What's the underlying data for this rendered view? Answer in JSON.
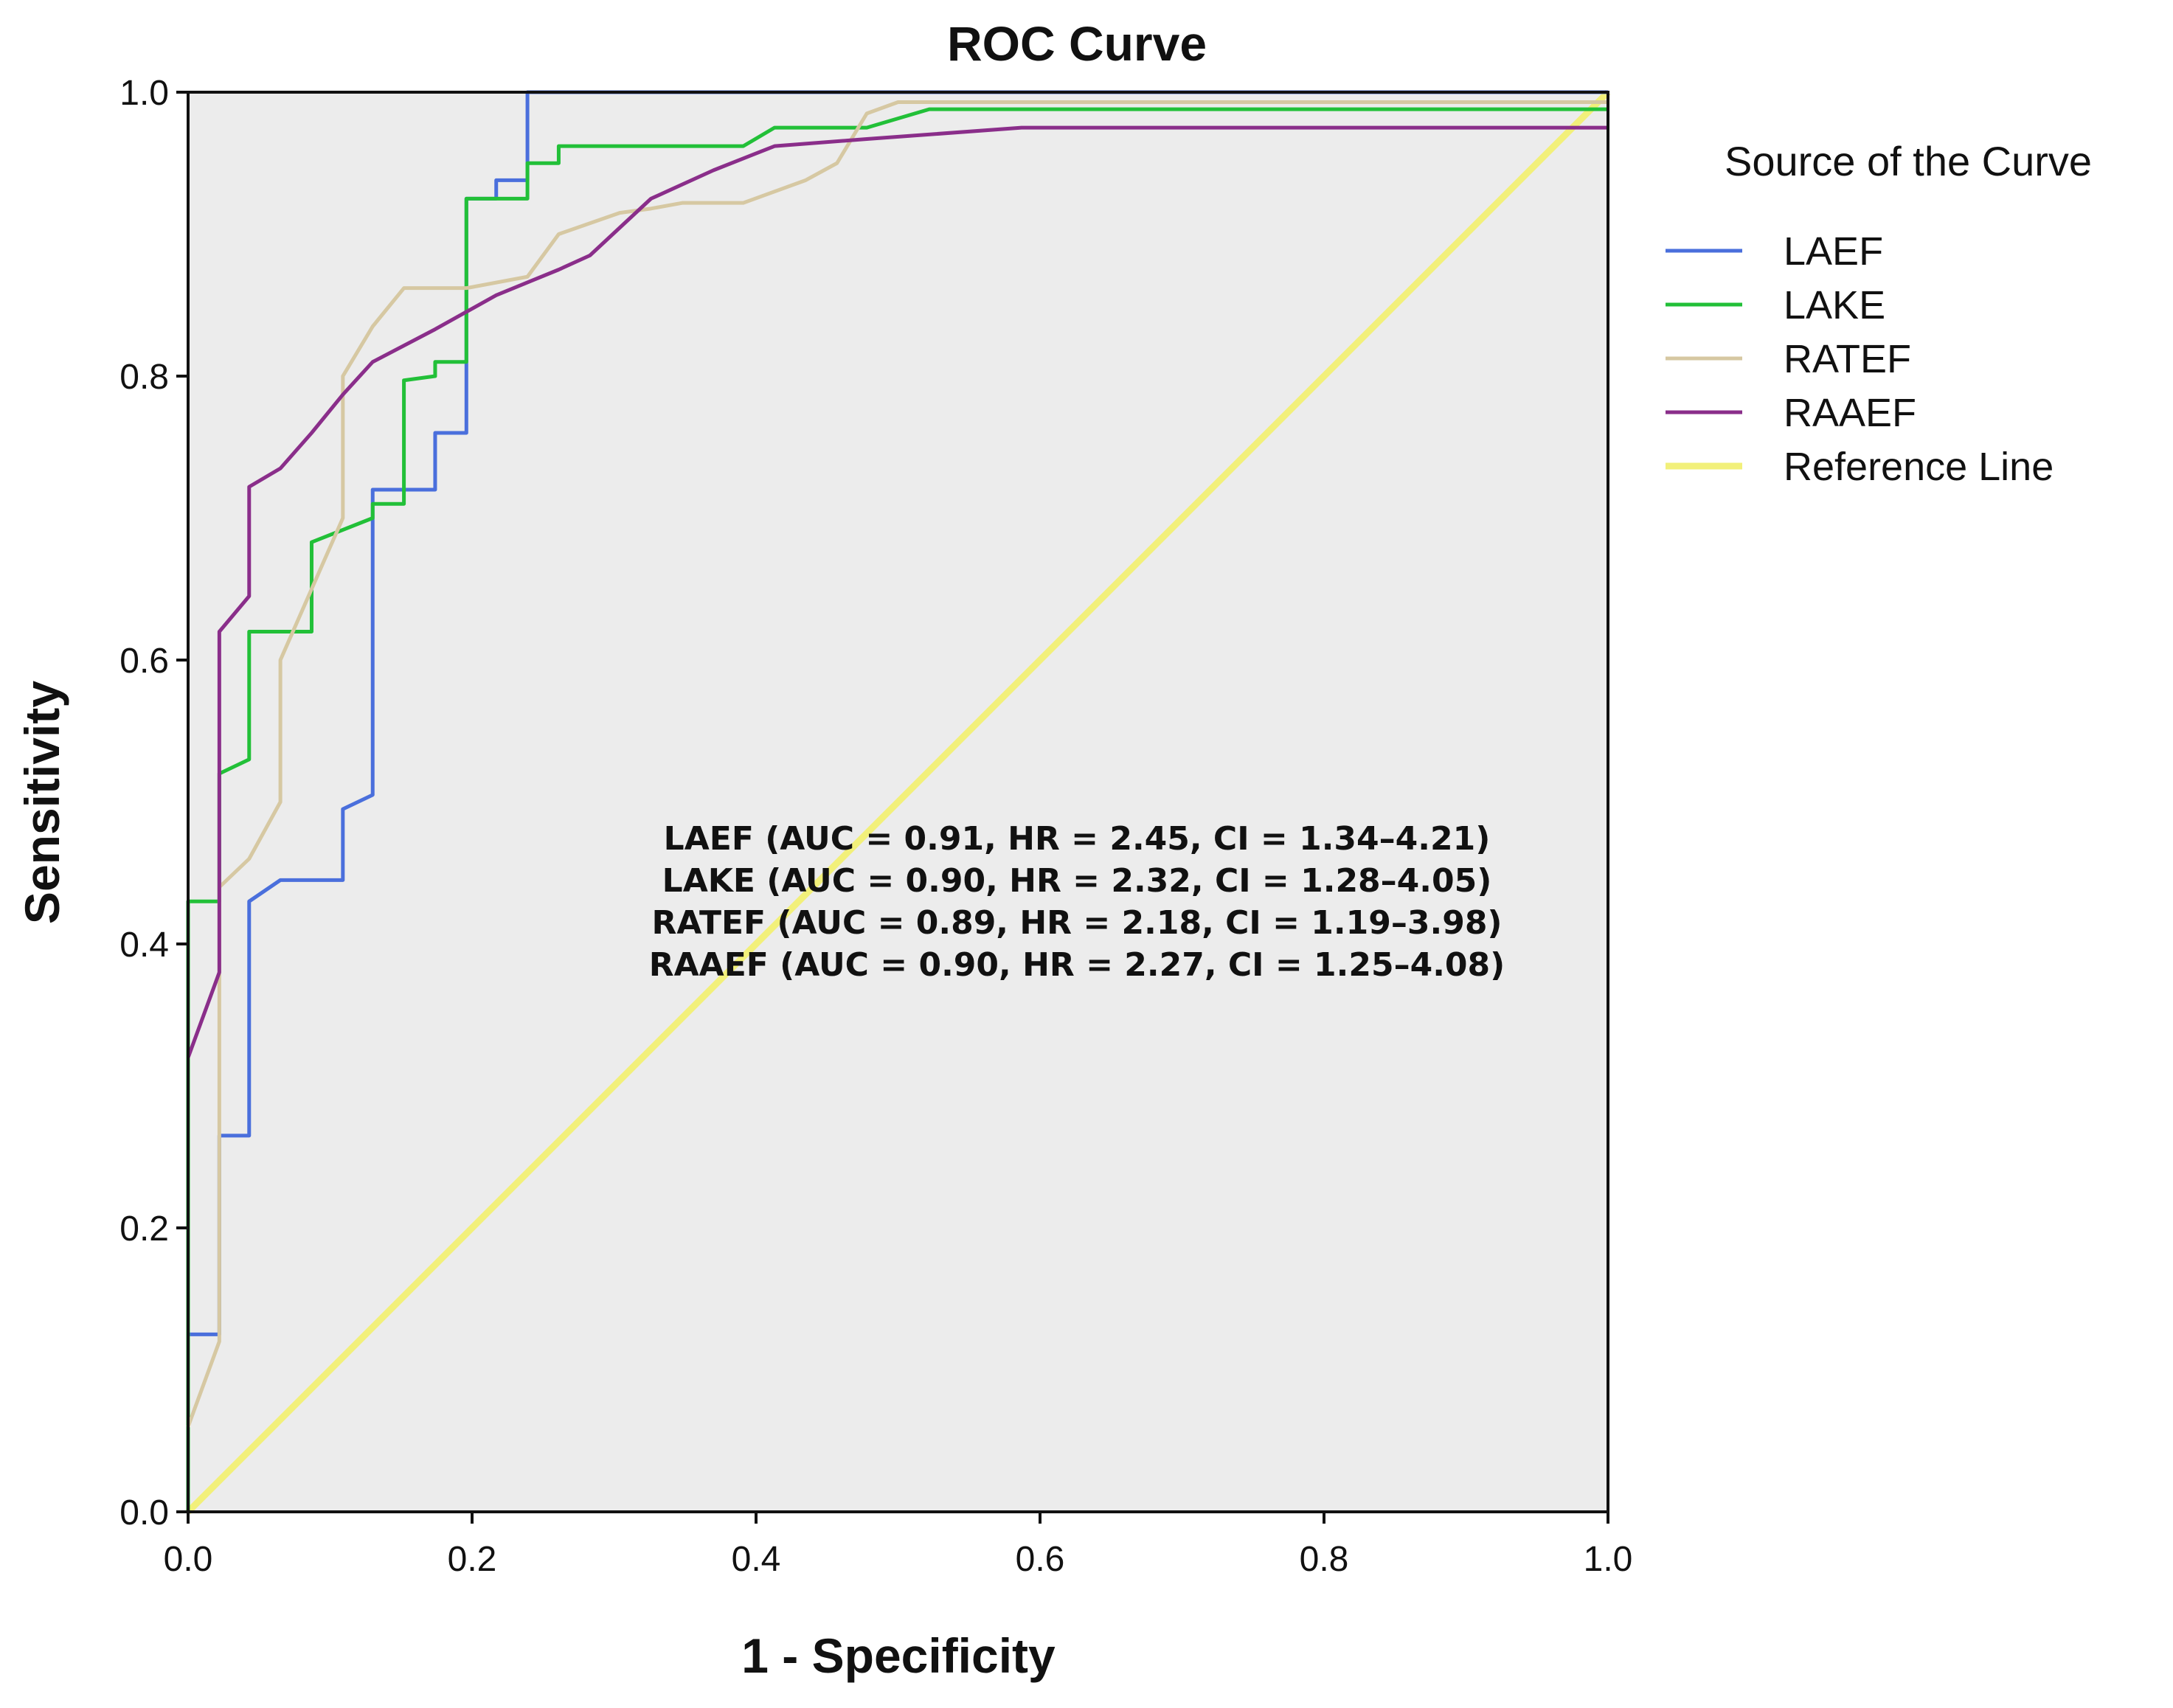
{
  "chart_data": {
    "type": "line",
    "title": "ROC Curve",
    "xlabel": "1 - Specificity",
    "ylabel": "Sensitivity",
    "xlim": [
      0,
      1
    ],
    "ylim": [
      0,
      1
    ],
    "xticks": [
      "0.0",
      "0.2",
      "0.4",
      "0.6",
      "0.8",
      "1.0"
    ],
    "yticks": [
      "0.0",
      "0.2",
      "0.4",
      "0.6",
      "0.8",
      "1.0"
    ],
    "grid": false,
    "background": "#ececec",
    "legend": {
      "title": "Source of the Curve",
      "position": "right",
      "entries": [
        "LAEF",
        "LAKE",
        "RATEF",
        "RAAEF",
        "Reference Line"
      ]
    },
    "series": [
      {
        "name": "LAEF",
        "color": "#4a6fdc",
        "x": [
          0,
          0,
          0.022,
          0.022,
          0.043,
          0.043,
          0.065,
          0.109,
          0.109,
          0.13,
          0.13,
          0.152,
          0.174,
          0.174,
          0.196,
          0.196,
          0.217,
          0.217,
          0.239,
          0.239,
          1
        ],
        "y": [
          0,
          0.125,
          0.125,
          0.265,
          0.265,
          0.43,
          0.445,
          0.445,
          0.495,
          0.505,
          0.72,
          0.72,
          0.72,
          0.76,
          0.76,
          0.925,
          0.925,
          0.938,
          0.938,
          1,
          1
        ]
      },
      {
        "name": "LAKE",
        "color": "#22c038",
        "x": [
          0,
          0,
          0.022,
          0.022,
          0.043,
          0.043,
          0.087,
          0.087,
          0.13,
          0.13,
          0.152,
          0.152,
          0.174,
          0.174,
          0.196,
          0.196,
          0.239,
          0.239,
          0.261,
          0.261,
          0.391,
          0.413,
          0.478,
          0.522,
          1
        ],
        "y": [
          0,
          0.43,
          0.43,
          0.52,
          0.53,
          0.62,
          0.62,
          0.683,
          0.7,
          0.71,
          0.71,
          0.797,
          0.8,
          0.81,
          0.81,
          0.925,
          0.925,
          0.95,
          0.95,
          0.962,
          0.962,
          0.975,
          0.975,
          0.988,
          0.988
        ]
      },
      {
        "name": "RATEF",
        "color": "#d6c8a2",
        "x": [
          0,
          0.022,
          0.022,
          0.043,
          0.065,
          0.065,
          0.109,
          0.109,
          0.13,
          0.152,
          0.196,
          0.239,
          0.261,
          0.304,
          0.326,
          0.348,
          0.391,
          0.435,
          0.457,
          0.478,
          0.5,
          1
        ],
        "y": [
          0.06,
          0.12,
          0.44,
          0.46,
          0.5,
          0.6,
          0.7,
          0.8,
          0.835,
          0.862,
          0.862,
          0.87,
          0.9,
          0.915,
          0.918,
          0.922,
          0.922,
          0.938,
          0.95,
          0.985,
          0.993,
          0.993
        ]
      },
      {
        "name": "RAAEF",
        "color": "#8a2e8a",
        "x": [
          0,
          0.022,
          0.022,
          0.043,
          0.043,
          0.065,
          0.087,
          0.109,
          0.13,
          0.174,
          0.217,
          0.261,
          0.283,
          0.326,
          0.37,
          0.413,
          0.478,
          0.587,
          1
        ],
        "y": [
          0.32,
          0.38,
          0.62,
          0.645,
          0.722,
          0.735,
          0.76,
          0.787,
          0.81,
          0.833,
          0.857,
          0.875,
          0.885,
          0.925,
          0.945,
          0.962,
          0.967,
          0.975,
          0.975
        ]
      },
      {
        "name": "Reference Line",
        "color": "#f2f07a",
        "x": [
          0,
          1
        ],
        "y": [
          0,
          1
        ]
      }
    ],
    "annotations": [
      "LAEF (AUC = 0.91, HR = 2.45, CI = 1.34–4.21)",
      "LAKE (AUC = 0.90, HR = 2.32, CI = 1.28–4.05)",
      "RATEF (AUC = 0.89, HR = 2.18, CI = 1.19–3.98)",
      "RAAEF (AUC = 0.90, HR = 2.27, CI = 1.25–4.08)"
    ]
  }
}
